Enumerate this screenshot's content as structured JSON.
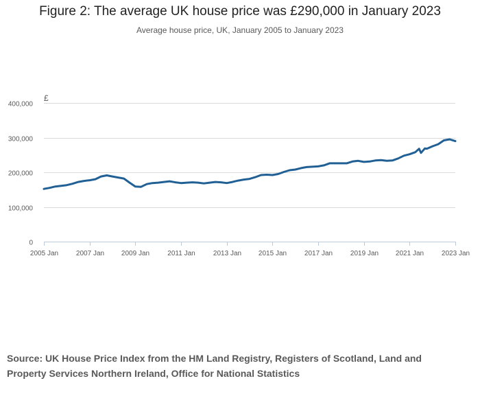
{
  "title": "Figure 2: The average UK house price was £290,000 in January 2023",
  "subtitle": "Average house price, UK, January 2005 to January 2023",
  "source": "Source: UK House Price Index from the HM Land Registry, Registers of Scotland, Land and Property Services Northern Ireland, Office for National Statistics",
  "colors": {
    "series": "#206095",
    "grid": "#d9d9d9",
    "axis": "#bcc9d8",
    "text": "#595959"
  },
  "chart_data": {
    "type": "line",
    "title": "Figure 2: The average UK house price was £290,000 in January 2023",
    "subtitle": "Average house price, UK, January 2005 to January 2023",
    "ylabel": "£",
    "xlabel": "",
    "ylim": [
      0,
      400000
    ],
    "yticks": [
      0,
      100000,
      200000,
      300000,
      400000
    ],
    "ytick_labels": [
      "0",
      "100,000",
      "200,000",
      "300,000",
      "400,000"
    ],
    "xlim": [
      "2005-01",
      "2023-01"
    ],
    "xticks": [
      "2005-01",
      "2007-01",
      "2009-01",
      "2011-01",
      "2013-01",
      "2015-01",
      "2017-01",
      "2019-01",
      "2021-01",
      "2023-01"
    ],
    "xtick_labels": [
      "2005 Jan",
      "2007 Jan",
      "2009 Jan",
      "2011 Jan",
      "2013 Jan",
      "2015 Jan",
      "2017 Jan",
      "2019 Jan",
      "2021 Jan",
      "2023 Jan"
    ],
    "grid": true,
    "series": [
      {
        "x": [
          "2005-01",
          "2005-04",
          "2005-07",
          "2005-10",
          "2006-01",
          "2006-04",
          "2006-07",
          "2006-10",
          "2007-01",
          "2007-04",
          "2007-07",
          "2007-10",
          "2008-01",
          "2008-04",
          "2008-07",
          "2008-10",
          "2009-01",
          "2009-04",
          "2009-07",
          "2009-10",
          "2010-01",
          "2010-04",
          "2010-07",
          "2010-10",
          "2011-01",
          "2011-04",
          "2011-07",
          "2011-10",
          "2012-01",
          "2012-04",
          "2012-07",
          "2012-10",
          "2013-01",
          "2013-04",
          "2013-07",
          "2013-10",
          "2014-01",
          "2014-04",
          "2014-07",
          "2014-10",
          "2015-01",
          "2015-04",
          "2015-07",
          "2015-10",
          "2016-01",
          "2016-04",
          "2016-07",
          "2016-10",
          "2017-01",
          "2017-04",
          "2017-07",
          "2017-10",
          "2018-01",
          "2018-04",
          "2018-07",
          "2018-10",
          "2019-01",
          "2019-04",
          "2019-07",
          "2019-10",
          "2020-01",
          "2020-04",
          "2020-07",
          "2020-10",
          "2021-01",
          "2021-04",
          "2021-06",
          "2021-07",
          "2021-09",
          "2021-10",
          "2022-01",
          "2022-04",
          "2022-07",
          "2022-10",
          "2023-01"
        ],
        "values": [
          152000,
          155000,
          159000,
          161000,
          163000,
          167000,
          172000,
          175000,
          177000,
          180000,
          188000,
          191000,
          188000,
          185000,
          182000,
          170000,
          159000,
          158000,
          166000,
          169000,
          170000,
          172000,
          174000,
          171000,
          169000,
          170000,
          171000,
          170000,
          168000,
          170000,
          172000,
          171000,
          169000,
          172000,
          176000,
          179000,
          181000,
          186000,
          192000,
          193000,
          192000,
          195000,
          201000,
          206000,
          208000,
          212000,
          215000,
          216000,
          217000,
          220000,
          226000,
          226000,
          226000,
          226000,
          231000,
          233000,
          230000,
          231000,
          234000,
          235000,
          233000,
          234000,
          240000,
          248000,
          252000,
          258000,
          268000,
          256000,
          269000,
          268000,
          275000,
          281000,
          292000,
          295000,
          290000
        ]
      }
    ]
  }
}
